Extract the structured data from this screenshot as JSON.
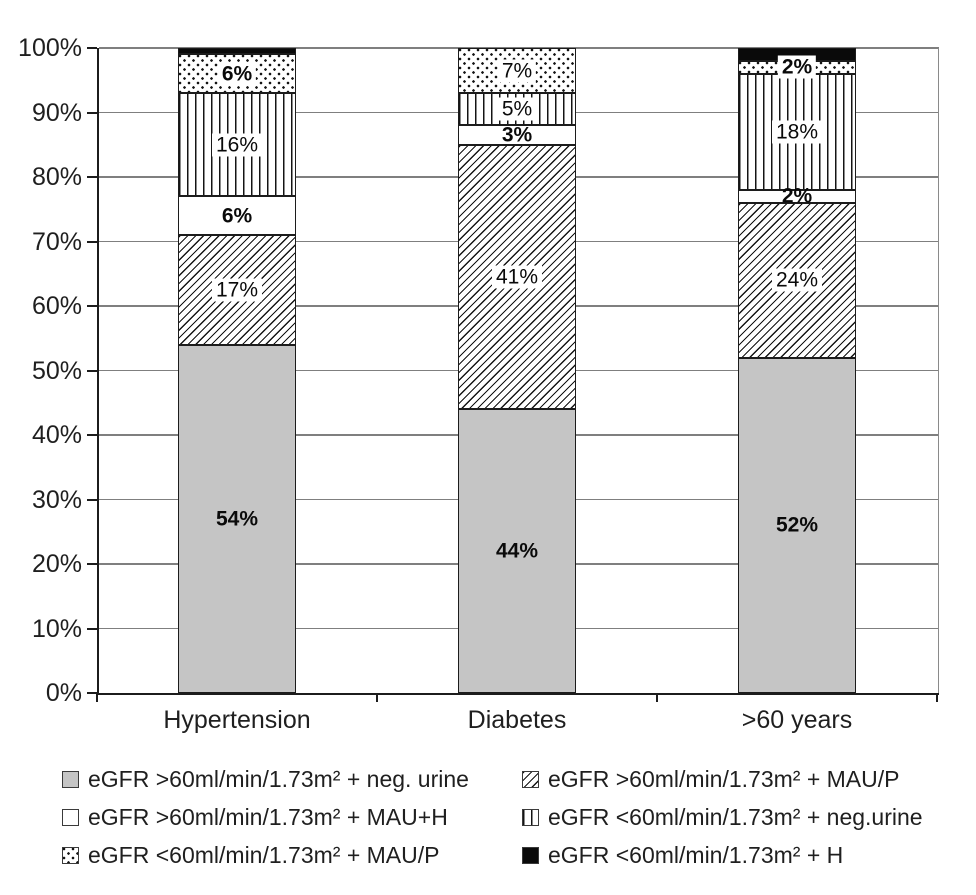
{
  "colors": {
    "bar_gray": "#c5c5c5",
    "pattern_ink": "#141414",
    "solid_black": "#0a0a0a",
    "gridline": "#7f7f7f",
    "axis": "#1c1c1c",
    "text": "#1f1f1f",
    "label_chip_bg": "#ffffff"
  },
  "chart_data": {
    "type": "bar",
    "stacked": true,
    "title": "",
    "xlabel": "",
    "ylabel": "",
    "ylim": [
      0,
      100
    ],
    "grid": true,
    "legend_position": "bottom",
    "yticks": [
      "0%",
      "10%",
      "20%",
      "30%",
      "40%",
      "50%",
      "60%",
      "70%",
      "80%",
      "90%",
      "100%"
    ],
    "ytick_values": [
      0,
      10,
      20,
      30,
      40,
      50,
      60,
      70,
      80,
      90,
      100
    ],
    "categories": [
      "Hypertension",
      "Diabetes",
      ">60 years"
    ],
    "series": [
      {
        "name": "eGFR >60ml/min/1.73m² + neg. urine",
        "pattern": "solid-gray",
        "values": [
          54,
          44,
          52
        ],
        "labels": [
          "54%",
          "44%",
          "52%"
        ],
        "label_bold": [
          true,
          true,
          true
        ],
        "label_chip": false
      },
      {
        "name": "eGFR >60ml/min/1.73m² + MAU/P",
        "pattern": "diagonal-hatch",
        "values": [
          17,
          41,
          24
        ],
        "labels": [
          "17%",
          "41%",
          "24%"
        ],
        "label_bold": [
          false,
          false,
          false
        ],
        "label_chip": true
      },
      {
        "name": "eGFR >60ml/min/1.73m² + MAU+H",
        "pattern": "solid-white",
        "values": [
          6,
          3,
          2
        ],
        "labels": [
          "6%",
          "3%",
          "2%"
        ],
        "label_bold": [
          true,
          true,
          true
        ],
        "label_chip": false
      },
      {
        "name": "eGFR <60ml/min/1.73m² + neg.urine",
        "pattern": "vertical-lines",
        "values": [
          16,
          5,
          18
        ],
        "labels": [
          "16%",
          "5%",
          "18%"
        ],
        "label_bold": [
          false,
          false,
          false
        ],
        "label_chip": true
      },
      {
        "name": "eGFR <60ml/min/1.73m² + MAU/P",
        "pattern": "dots",
        "values": [
          6,
          7,
          2
        ],
        "labels": [
          "6%",
          "7%",
          "2%"
        ],
        "label_bold": [
          true,
          false,
          true
        ],
        "label_chip": true
      },
      {
        "name": "eGFR <60ml/min/1.73m² + H",
        "pattern": "solid-black",
        "values": [
          1,
          0,
          2
        ],
        "labels": [
          "",
          "",
          ""
        ],
        "label_bold": [
          false,
          false,
          false
        ],
        "label_chip": false
      }
    ],
    "legend_items": [
      {
        "label": "eGFR >60ml/min/1.73m² + neg. urine",
        "pattern": "solid-gray"
      },
      {
        "label": "eGFR >60ml/min/1.73m² + MAU/P",
        "pattern": "diagonal-hatch"
      },
      {
        "label": "eGFR >60ml/min/1.73m² + MAU+H",
        "pattern": "solid-white"
      },
      {
        "label": "eGFR <60ml/min/1.73m² + neg.urine",
        "pattern": "vertical-lines"
      },
      {
        "label": "eGFR <60ml/min/1.73m² + MAU/P",
        "pattern": "dots"
      },
      {
        "label": "eGFR <60ml/min/1.73m² + H",
        "pattern": "solid-black"
      }
    ]
  }
}
